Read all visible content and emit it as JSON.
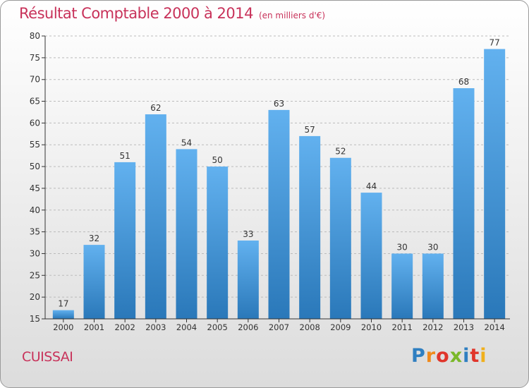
{
  "chart_data": {
    "type": "bar",
    "title": "Résultat Comptable 2000 à 2014",
    "subtitle": "(en milliers d'€)",
    "categories": [
      "2000",
      "2001",
      "2002",
      "2003",
      "2004",
      "2005",
      "2006",
      "2007",
      "2008",
      "2009",
      "2010",
      "2011",
      "2012",
      "2013",
      "2014"
    ],
    "values": [
      17,
      32,
      51,
      62,
      54,
      50,
      33,
      63,
      57,
      52,
      44,
      30,
      30,
      68,
      77
    ],
    "ylim": [
      15,
      80
    ],
    "yticks": [
      15,
      20,
      25,
      30,
      35,
      40,
      45,
      50,
      55,
      60,
      65,
      70,
      75,
      80
    ],
    "xlabel": "",
    "ylabel": "",
    "grid": "horizontal dashed",
    "bar_color_top": "#62b1ef",
    "bar_color_bottom": "#2a78b9"
  },
  "footer": {
    "commune": "CUISSAI",
    "logo_letters": [
      {
        "ch": "P",
        "color": "#2f7fc1"
      },
      {
        "ch": "r",
        "color": "#f08a1c"
      },
      {
        "ch": "o",
        "color": "#e0352b"
      },
      {
        "ch": "x",
        "color": "#7ab829"
      },
      {
        "ch": "i",
        "color": "#2f7fc1"
      },
      {
        "ch": "t",
        "color": "#e0352b"
      },
      {
        "ch": "i",
        "color": "#f0b01c"
      }
    ]
  },
  "colors": {
    "title": "#c8325a",
    "axis": "#333333",
    "grid": "#bbbbbb"
  }
}
